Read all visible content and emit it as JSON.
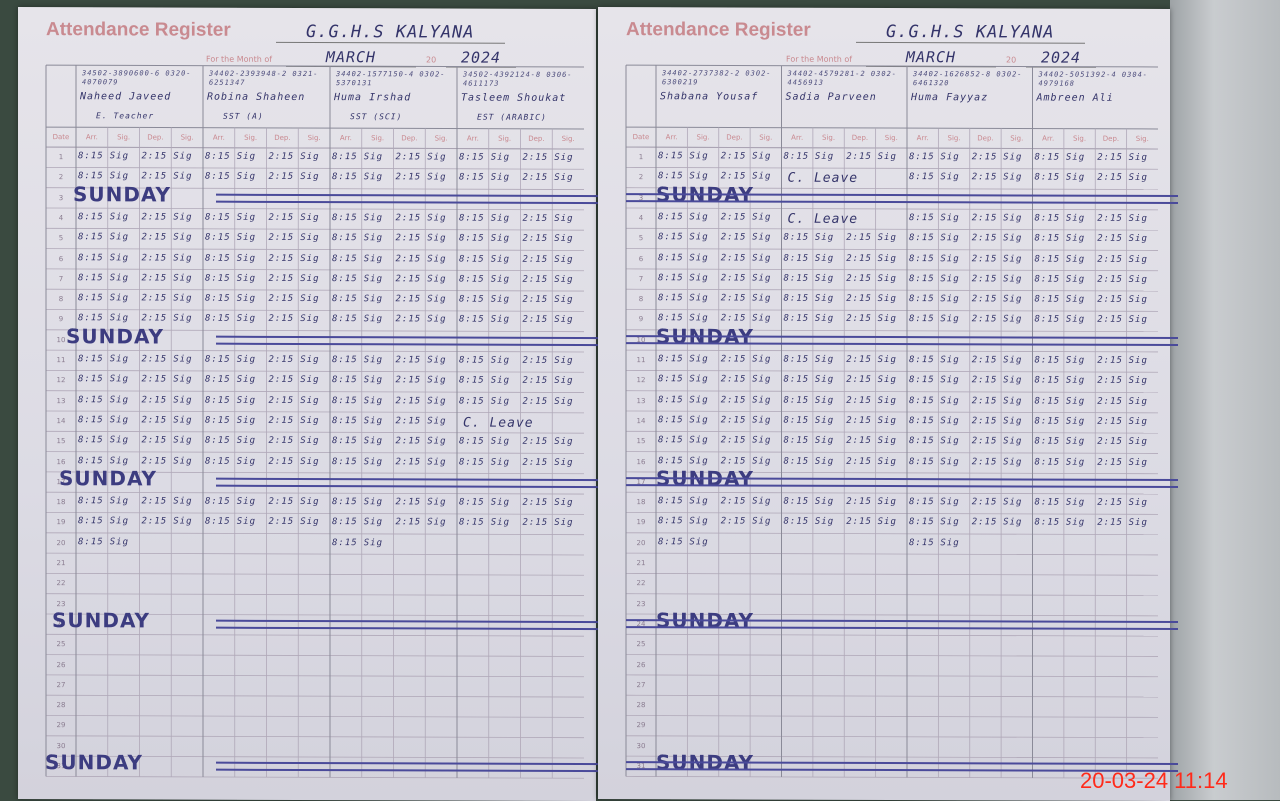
{
  "pages": [
    {
      "title": "Attendance Register",
      "school": "G.G.H.S KALYANA",
      "month_label": "For the Month of",
      "month": "MARCH",
      "year_label": "20",
      "year": "2024",
      "teachers": [
        {
          "phone": "34502-3890600-6 0320-4070079",
          "name": "Naheed Javeed",
          "designation": "E. Teacher"
        },
        {
          "phone": "34402-2393948-2 0321-6251347",
          "name": "Robina Shaheen",
          "designation": "SST (A)"
        },
        {
          "phone": "34402-1577150-4 0302-5370131",
          "name": "Huma Irshad",
          "designation": "SST (SCI)"
        },
        {
          "phone": "34502-4392124-8 0306-4611173",
          "name": "Tasleem Shoukat",
          "designation": "EST (ARABIC)"
        }
      ],
      "leave_note": {
        "row": 14,
        "text": "C. Leave"
      }
    },
    {
      "title": "Attendance Register",
      "school": "G.G.H.S KALYANA",
      "month_label": "For the Month of",
      "month": "MARCH",
      "year_label": "20",
      "year": "2024",
      "teachers": [
        {
          "phone": "34402-2737382-2 0302-6300219",
          "name": "Shabana Yousaf",
          "designation": ""
        },
        {
          "phone": "34402-4579281-2 0302-4456913",
          "name": "Sadia Parveen",
          "designation": ""
        },
        {
          "phone": "34402-1626852-8 0302-6461320",
          "name": "Huma Fayyaz",
          "designation": ""
        },
        {
          "phone": "34402-5051392-4 0304-4979168",
          "name": "Ambreen Ali",
          "designation": ""
        }
      ],
      "leave_note": {
        "row": 2,
        "text": "C. Leave",
        "row2": 4
      }
    }
  ],
  "columns": [
    "Date",
    "Arr.",
    "Sig.",
    "Dep.",
    "Sig.",
    "Arr.",
    "Sig.",
    "Dep.",
    "Sig.",
    "Arr.",
    "Sig.",
    "Dep.",
    "Sig.",
    "Arr.",
    "Sig.",
    "Dep.",
    "Sig."
  ],
  "sunday_label": "SUNDAY",
  "sundays": [
    3,
    10,
    17,
    24,
    31
  ],
  "last_filled_day": 20,
  "arrival_time": "8:15",
  "departure_time": "2:15",
  "signature": "Sig",
  "timestamp": "20-03-24  11:14",
  "ink_color": "#34346a",
  "print_color": "#c98a90"
}
